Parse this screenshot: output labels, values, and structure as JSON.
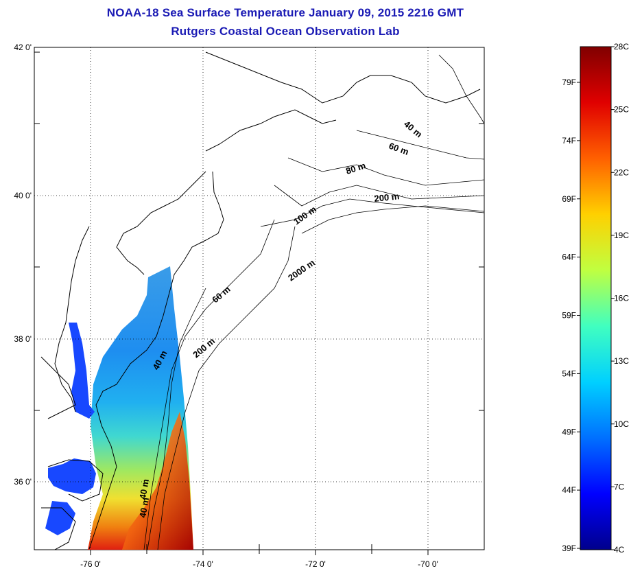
{
  "title_line1": "NOAA-18 Sea Surface Temperature January 09, 2015 2216 GMT",
  "title_line2": "Rutgers Coastal Ocean Observation Lab",
  "axes": {
    "lat_labels": [
      "42 0'",
      "40 0'",
      "38 0'",
      "36 0'"
    ],
    "lon_labels": [
      "-76 0'",
      "-74 0'",
      "-72 0'",
      "-70 0'"
    ]
  },
  "isobath_labels": [
    "40 m",
    "60 m",
    "80 m",
    "100 m",
    "200 m",
    "2000 m",
    "60 m",
    "200 m",
    "40 m",
    "40 m"
  ],
  "colorbar": {
    "celsius_labels": [
      "28C",
      "25C",
      "22C",
      "19C",
      "16C",
      "13C",
      "10C",
      "7C",
      "4C"
    ],
    "fahrenheit_labels": [
      "79F",
      "74F",
      "69F",
      "64F",
      "59F",
      "54F",
      "49F",
      "44F",
      "39F"
    ],
    "colors": [
      "#00008c",
      "#0000ff",
      "#0070ff",
      "#00d0ff",
      "#40ffc0",
      "#c0ff40",
      "#ffd000",
      "#ff6000",
      "#e00000",
      "#800000"
    ]
  }
}
